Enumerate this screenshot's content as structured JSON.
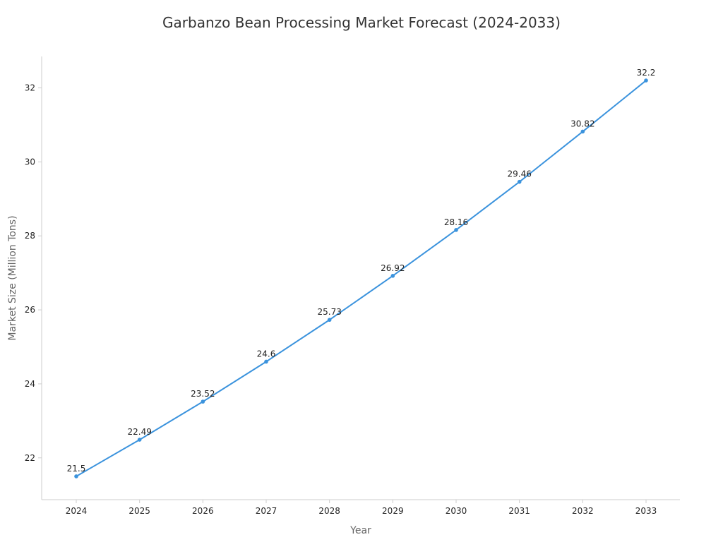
{
  "chart_data": {
    "type": "line",
    "title": "Garbanzo Bean Processing Market Forecast (2024-2033)",
    "xlabel": "Year",
    "ylabel": "Market Size (Million Tons)",
    "x": [
      "2024",
      "2025",
      "2026",
      "2027",
      "2028",
      "2029",
      "2030",
      "2031",
      "2032",
      "2033"
    ],
    "series": [
      {
        "values": [
          21.5,
          22.49,
          23.52,
          24.6,
          25.73,
          26.92,
          28.16,
          29.46,
          30.82,
          32.2
        ],
        "data_labels": [
          "21.5",
          "22.49",
          "23.52",
          "24.6",
          "25.73",
          "26.92",
          "28.16",
          "29.46",
          "30.82",
          "32.2"
        ],
        "color": "#3b93dd"
      }
    ],
    "yticks": [
      "22",
      "24",
      "26",
      "28",
      "30",
      "32"
    ],
    "ylim": [
      20.87,
      32.85
    ],
    "grid": false,
    "axis_color": "#cccccc"
  }
}
